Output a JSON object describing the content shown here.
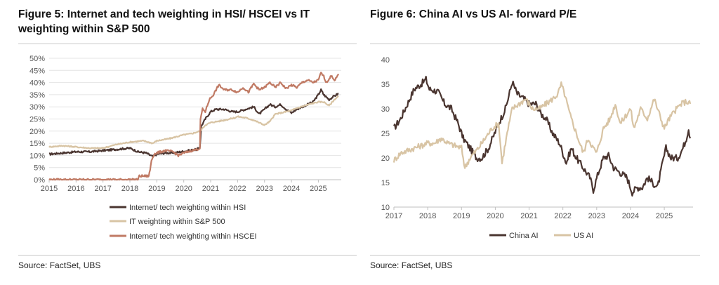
{
  "figures": [
    {
      "title": "Figure 5: Internet and tech weighting in HSI/ HSCEI vs IT weighting within S&P 500",
      "source": "Source: FactSet, UBS"
    },
    {
      "title": "Figure 6: China AI vs US AI- forward P/E",
      "source": "Source: FactSet, UBS"
    }
  ],
  "colors": {
    "hsi": "#4a3530",
    "sp500": "#d8c4a4",
    "hscei": "#c07a64",
    "china_ai": "#4a3530",
    "us_ai": "#d8c4a4",
    "grid": "#e4e4e4",
    "axis": "#bfbfbf"
  },
  "chart_data": [
    {
      "type": "line",
      "title": "Figure 5: Internet and tech weighting in HSI/ HSCEI vs IT weighting within S&P 500",
      "xlabel": "",
      "ylabel": "",
      "xlim": [
        2015,
        2025.85
      ],
      "ylim": [
        0,
        50
      ],
      "x_ticks": [
        "2015",
        "2016",
        "2017",
        "2018",
        "2019",
        "2020",
        "2021",
        "2022",
        "2023",
        "2024",
        "2025"
      ],
      "y_ticks": [
        "0%",
        "5%",
        "10%",
        "15%",
        "20%",
        "25%",
        "30%",
        "35%",
        "40%",
        "45%",
        "50%"
      ],
      "legend_position": "bottom",
      "series": [
        {
          "name": "Internet/ tech weighting within HSI",
          "color_key": "hsi",
          "points": [
            [
              2015,
              10.5
            ],
            [
              2015.5,
              11
            ],
            [
              2016,
              11.5
            ],
            [
              2016.5,
              11.5
            ],
            [
              2017,
              12
            ],
            [
              2017.5,
              12.5
            ],
            [
              2018,
              13
            ],
            [
              2018.3,
              11.5
            ],
            [
              2018.6,
              11
            ],
            [
              2018.85,
              9.5
            ],
            [
              2019,
              10.5
            ],
            [
              2019.3,
              11
            ],
            [
              2019.6,
              11
            ],
            [
              2019.9,
              11.5
            ],
            [
              2020.2,
              12
            ],
            [
              2020.5,
              12.5
            ],
            [
              2020.6,
              13.5
            ],
            [
              2020.65,
              22
            ],
            [
              2020.8,
              25
            ],
            [
              2021.0,
              28
            ],
            [
              2021.2,
              29
            ],
            [
              2021.5,
              29
            ],
            [
              2021.8,
              28
            ],
            [
              2022.0,
              28
            ],
            [
              2022.3,
              29
            ],
            [
              2022.6,
              30
            ],
            [
              2022.8,
              27
            ],
            [
              2023.0,
              29
            ],
            [
              2023.2,
              31
            ],
            [
              2023.4,
              30
            ],
            [
              2023.6,
              31
            ],
            [
              2023.8,
              29
            ],
            [
              2024.0,
              27.5
            ],
            [
              2024.2,
              29
            ],
            [
              2024.4,
              30
            ],
            [
              2024.6,
              31
            ],
            [
              2024.8,
              32
            ],
            [
              2025.0,
              35
            ],
            [
              2025.1,
              37
            ],
            [
              2025.2,
              35
            ],
            [
              2025.4,
              33
            ],
            [
              2025.6,
              34.5
            ],
            [
              2025.75,
              35.5
            ]
          ]
        },
        {
          "name": "IT weighting within S&P 500",
          "color_key": "sp500",
          "points": [
            [
              2015,
              13.5
            ],
            [
              2015.5,
              14
            ],
            [
              2016,
              13.5
            ],
            [
              2016.5,
              13
            ],
            [
              2017,
              13
            ],
            [
              2017.5,
              14.5
            ],
            [
              2018,
              15.5
            ],
            [
              2018.5,
              16
            ],
            [
              2018.85,
              15
            ],
            [
              2019,
              16
            ],
            [
              2019.5,
              17
            ],
            [
              2020,
              18.5
            ],
            [
              2020.3,
              19
            ],
            [
              2020.6,
              20
            ],
            [
              2020.8,
              22.5
            ],
            [
              2021,
              23.5
            ],
            [
              2021.5,
              24.5
            ],
            [
              2021.9,
              25.5
            ],
            [
              2022,
              26
            ],
            [
              2022.3,
              25.5
            ],
            [
              2022.6,
              24.5
            ],
            [
              2022.8,
              23.5
            ],
            [
              2023.0,
              22.5
            ],
            [
              2023.2,
              24
            ],
            [
              2023.4,
              27
            ],
            [
              2023.6,
              27.5
            ],
            [
              2023.8,
              28
            ],
            [
              2024.0,
              28.5
            ],
            [
              2024.2,
              29.5
            ],
            [
              2024.5,
              30.5
            ],
            [
              2024.8,
              31.5
            ],
            [
              2025.0,
              32
            ],
            [
              2025.2,
              32
            ],
            [
              2025.4,
              30.5
            ],
            [
              2025.6,
              33
            ],
            [
              2025.75,
              34.5
            ]
          ]
        },
        {
          "name": "Internet/ tech weighting within HSCEI",
          "color_key": "hscei",
          "points": [
            [
              2015,
              0
            ],
            [
              2015.5,
              0
            ],
            [
              2016,
              0
            ],
            [
              2016.5,
              0
            ],
            [
              2017,
              0
            ],
            [
              2017.5,
              0
            ],
            [
              2018,
              0
            ],
            [
              2018.3,
              0
            ],
            [
              2018.35,
              1.5
            ],
            [
              2018.5,
              1.5
            ],
            [
              2018.7,
              1.5
            ],
            [
              2018.75,
              4
            ],
            [
              2018.8,
              8
            ],
            [
              2018.9,
              10.5
            ],
            [
              2019,
              11
            ],
            [
              2019.3,
              12
            ],
            [
              2019.6,
              11.5
            ],
            [
              2019.8,
              10
            ],
            [
              2020,
              11
            ],
            [
              2020.3,
              12
            ],
            [
              2020.5,
              12.5
            ],
            [
              2020.6,
              13
            ],
            [
              2020.62,
              25
            ],
            [
              2020.7,
              29
            ],
            [
              2020.8,
              28
            ],
            [
              2020.95,
              33
            ],
            [
              2021.1,
              35
            ],
            [
              2021.3,
              39
            ],
            [
              2021.5,
              37
            ],
            [
              2021.8,
              37
            ],
            [
              2022.0,
              36
            ],
            [
              2022.2,
              38
            ],
            [
              2022.4,
              36
            ],
            [
              2022.6,
              39.5
            ],
            [
              2022.8,
              37
            ],
            [
              2023.0,
              38
            ],
            [
              2023.2,
              40
            ],
            [
              2023.4,
              38
            ],
            [
              2023.6,
              40
            ],
            [
              2023.8,
              37.5
            ],
            [
              2024.0,
              39
            ],
            [
              2024.2,
              38
            ],
            [
              2024.4,
              40
            ],
            [
              2024.6,
              41
            ],
            [
              2024.8,
              40
            ],
            [
              2025.0,
              41
            ],
            [
              2025.1,
              44
            ],
            [
              2025.2,
              42.5
            ],
            [
              2025.3,
              40
            ],
            [
              2025.5,
              43
            ],
            [
              2025.6,
              40.5
            ],
            [
              2025.75,
              43.5
            ]
          ]
        }
      ]
    },
    {
      "type": "line",
      "title": "Figure 6: China AI vs US AI- forward P/E",
      "xlabel": "",
      "ylabel": "",
      "xlim": [
        2017,
        2025.85
      ],
      "ylim": [
        10,
        40
      ],
      "x_ticks": [
        "2017",
        "2018",
        "2019",
        "2020",
        "2021",
        "2022",
        "2023",
        "2024",
        "2025"
      ],
      "y_ticks": [
        "10",
        "15",
        "20",
        "25",
        "30",
        "35",
        "40"
      ],
      "legend_position": "bottom",
      "series": [
        {
          "name": "China AI",
          "color_key": "china_ai",
          "points": [
            [
              2017,
              26
            ],
            [
              2017.2,
              28
            ],
            [
              2017.4,
              31
            ],
            [
              2017.6,
              34
            ],
            [
              2017.8,
              35
            ],
            [
              2017.95,
              36
            ],
            [
              2018.05,
              34
            ],
            [
              2018.3,
              33.5
            ],
            [
              2018.5,
              31
            ],
            [
              2018.7,
              30
            ],
            [
              2018.9,
              27
            ],
            [
              2019.05,
              24
            ],
            [
              2019.25,
              22
            ],
            [
              2019.45,
              20
            ],
            [
              2019.6,
              20
            ],
            [
              2019.8,
              22
            ],
            [
              2019.95,
              24.5
            ],
            [
              2020.1,
              27
            ],
            [
              2020.3,
              30
            ],
            [
              2020.45,
              34
            ],
            [
              2020.5,
              35.5
            ],
            [
              2020.65,
              33
            ],
            [
              2020.85,
              32
            ],
            [
              2021.0,
              31
            ],
            [
              2021.2,
              31
            ],
            [
              2021.35,
              29
            ],
            [
              2021.5,
              28
            ],
            [
              2021.7,
              25
            ],
            [
              2021.9,
              23
            ],
            [
              2022.0,
              21
            ],
            [
              2022.1,
              19
            ],
            [
              2022.25,
              22
            ],
            [
              2022.4,
              20
            ],
            [
              2022.6,
              18
            ],
            [
              2022.8,
              16
            ],
            [
              2022.9,
              13.5
            ],
            [
              2023.05,
              17
            ],
            [
              2023.2,
              20
            ],
            [
              2023.35,
              20.5
            ],
            [
              2023.5,
              18
            ],
            [
              2023.7,
              17
            ],
            [
              2023.9,
              16
            ],
            [
              2024.05,
              13
            ],
            [
              2024.2,
              14
            ],
            [
              2024.35,
              14
            ],
            [
              2024.5,
              16
            ],
            [
              2024.65,
              15
            ],
            [
              2024.8,
              14
            ],
            [
              2024.95,
              19
            ],
            [
              2025.05,
              22
            ],
            [
              2025.2,
              20
            ],
            [
              2025.4,
              20
            ],
            [
              2025.55,
              22
            ],
            [
              2025.65,
              24
            ],
            [
              2025.72,
              26
            ],
            [
              2025.77,
              24
            ]
          ]
        },
        {
          "name": "US AI",
          "color_key": "us_ai",
          "points": [
            [
              2017,
              19.5
            ],
            [
              2017.2,
              21
            ],
            [
              2017.4,
              21.5
            ],
            [
              2017.6,
              22
            ],
            [
              2017.8,
              22.5
            ],
            [
              2018.0,
              23
            ],
            [
              2018.2,
              23
            ],
            [
              2018.4,
              24
            ],
            [
              2018.6,
              23
            ],
            [
              2018.8,
              22.5
            ],
            [
              2019.0,
              22
            ],
            [
              2019.1,
              18
            ],
            [
              2019.25,
              20
            ],
            [
              2019.5,
              22
            ],
            [
              2019.7,
              24
            ],
            [
              2019.9,
              26
            ],
            [
              2020.1,
              27
            ],
            [
              2020.2,
              19
            ],
            [
              2020.35,
              25
            ],
            [
              2020.5,
              30
            ],
            [
              2020.7,
              31
            ],
            [
              2020.9,
              32
            ],
            [
              2021.1,
              30
            ],
            [
              2021.3,
              30
            ],
            [
              2021.5,
              31
            ],
            [
              2021.7,
              32
            ],
            [
              2021.85,
              33
            ],
            [
              2021.95,
              35
            ],
            [
              2022.05,
              33
            ],
            [
              2022.2,
              29
            ],
            [
              2022.4,
              25
            ],
            [
              2022.6,
              21
            ],
            [
              2022.75,
              24
            ],
            [
              2022.9,
              22
            ],
            [
              2023.0,
              21
            ],
            [
              2023.2,
              26
            ],
            [
              2023.4,
              28
            ],
            [
              2023.55,
              31
            ],
            [
              2023.7,
              27
            ],
            [
              2023.9,
              29
            ],
            [
              2024.0,
              30
            ],
            [
              2024.1,
              26
            ],
            [
              2024.3,
              30
            ],
            [
              2024.5,
              28
            ],
            [
              2024.7,
              32
            ],
            [
              2024.85,
              29
            ],
            [
              2025.0,
              26
            ],
            [
              2025.1,
              27.5
            ],
            [
              2025.3,
              29.5
            ],
            [
              2025.5,
              31
            ],
            [
              2025.65,
              31.5
            ],
            [
              2025.77,
              31
            ]
          ]
        }
      ]
    }
  ]
}
